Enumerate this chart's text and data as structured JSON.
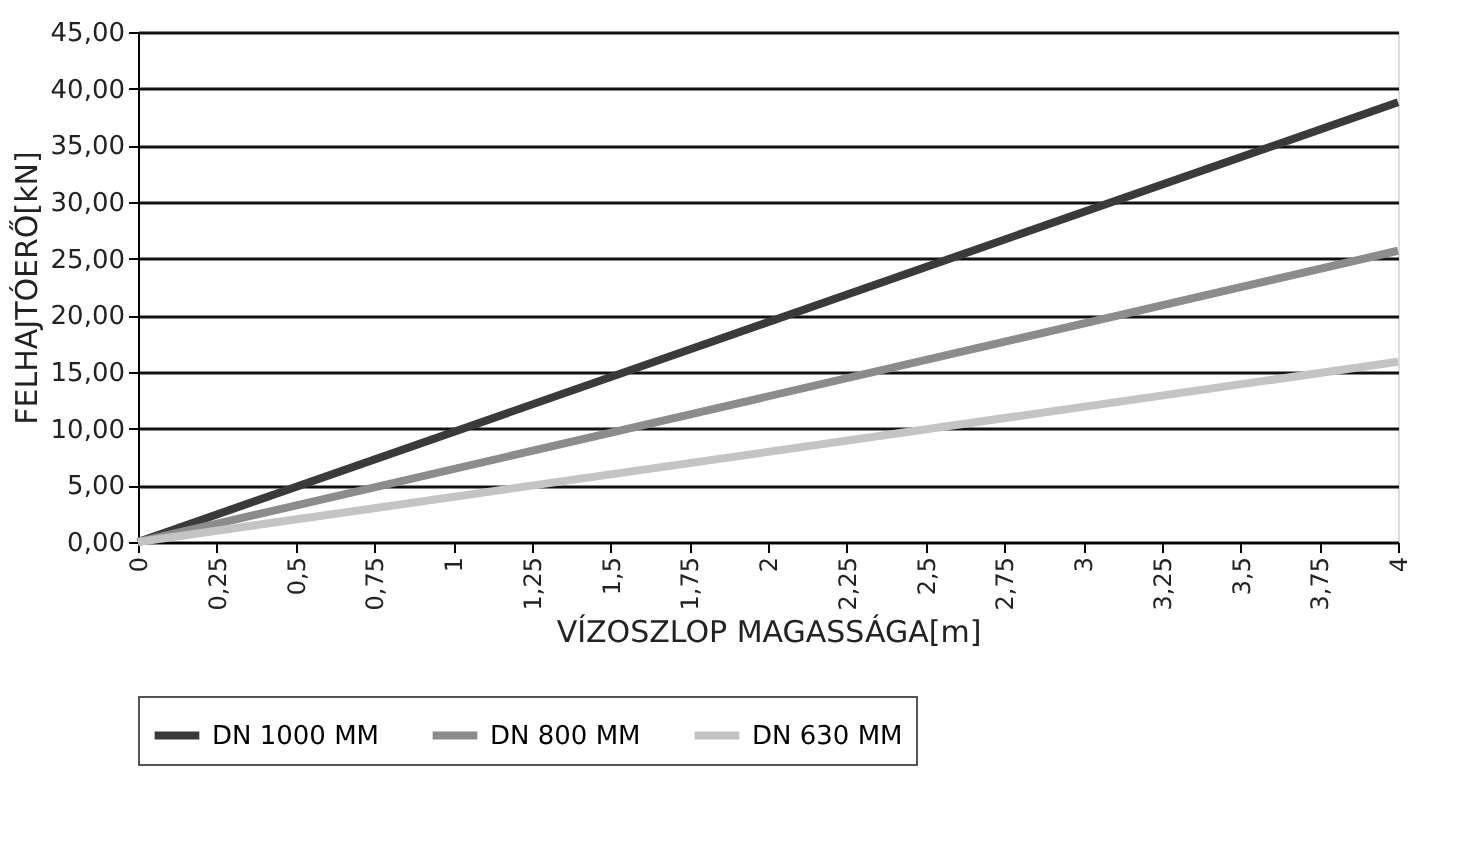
{
  "chart_data": {
    "type": "line",
    "xlabel": "VÍZOSZLOP MAGASSÁGA[m]",
    "ylabel": "FELHAJTÓERŐ[kN]",
    "xlim": [
      0,
      4
    ],
    "ylim": [
      0,
      45
    ],
    "xticks": [
      0,
      {
        "value": 0.25,
        "label": "0,25"
      },
      {
        "value": 0.5,
        "label": "0,5"
      },
      {
        "value": 0.75,
        "label": "0,75"
      },
      1,
      {
        "value": 1.25,
        "label": "1,25"
      },
      {
        "value": 1.5,
        "label": "1,5"
      },
      {
        "value": 1.75,
        "label": "1,75"
      },
      2,
      {
        "value": 2.25,
        "label": "2,25"
      },
      {
        "value": 2.5,
        "label": "2,5"
      },
      {
        "value": 2.75,
        "label": "2,75"
      },
      3,
      {
        "value": 3.25,
        "label": "3,25"
      },
      {
        "value": 3.5,
        "label": "3,5"
      },
      {
        "value": 3.75,
        "label": "3,75"
      },
      4
    ],
    "yticks": [
      {
        "value": 0,
        "label": "0,00"
      },
      {
        "value": 5,
        "label": "5,00"
      },
      {
        "value": 10,
        "label": "10,00"
      },
      {
        "value": 15,
        "label": "15,00"
      },
      {
        "value": 20,
        "label": "20,00"
      },
      {
        "value": 25,
        "label": "25,00"
      },
      {
        "value": 30,
        "label": "30,00"
      },
      {
        "value": 35,
        "label": "35,00"
      },
      {
        "value": 40,
        "label": "40,00"
      },
      {
        "value": 45,
        "label": "45,00"
      }
    ],
    "x": [
      0,
      4
    ],
    "series": [
      {
        "name": "DN 1000 MM",
        "color": "#3a3a3a",
        "values": [
          0,
          38.8
        ]
      },
      {
        "name": "DN 800 MM",
        "color": "#8c8c8c",
        "values": [
          0,
          25.7
        ]
      },
      {
        "name": "DN 630 MM",
        "color": "#c4c4c4",
        "values": [
          0,
          15.9
        ]
      }
    ],
    "grid": "y",
    "legend": "bottom",
    "marker": "none",
    "line_style": "solid"
  }
}
